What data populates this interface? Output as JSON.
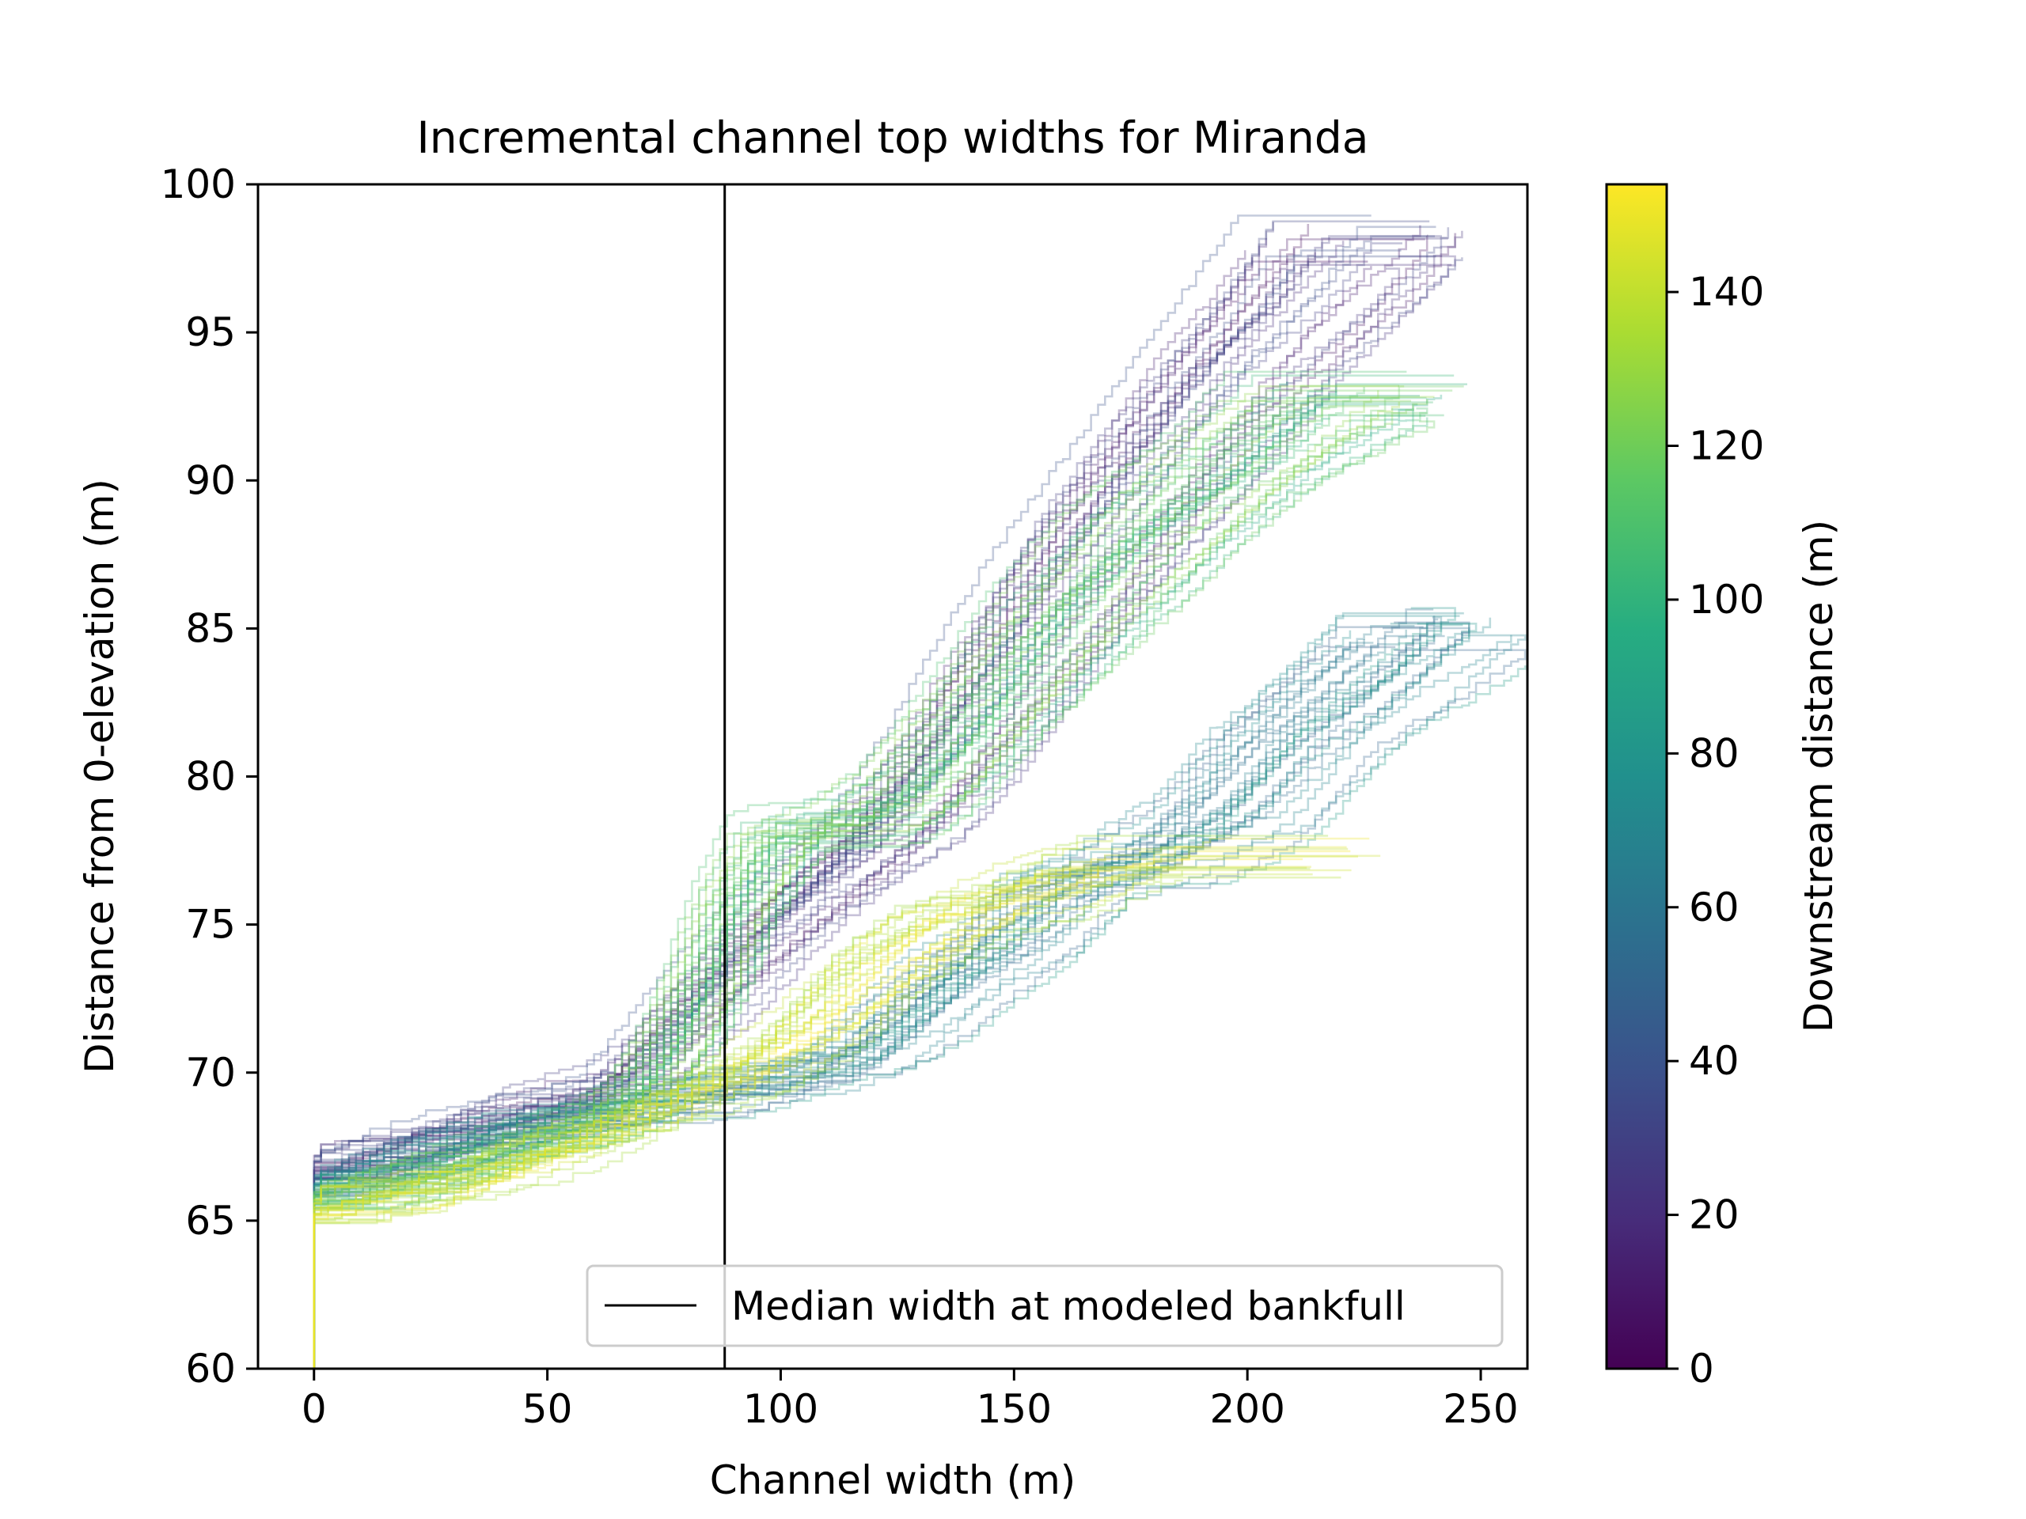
{
  "chart_data": {
    "type": "line",
    "title": "Incremental channel top widths for Miranda",
    "xlabel": "Channel width (m)",
    "ylabel": "Distance from 0-elevation (m)",
    "xlim": [
      -12,
      260
    ],
    "ylim": [
      60,
      100
    ],
    "xticks": [
      0,
      50,
      100,
      150,
      200,
      250
    ],
    "yticks": [
      60,
      65,
      70,
      75,
      80,
      85,
      90,
      95,
      100
    ],
    "grid": false,
    "legend": {
      "position": "lower right",
      "entries": [
        "Median width at modeled bankfull"
      ]
    },
    "reference_lines": [
      {
        "orientation": "vertical",
        "x": 88,
        "color": "#000000",
        "label": "Median width at modeled bankfull"
      }
    ],
    "colorbar": {
      "label": "Downstream distance (m)",
      "colormap": "viridis",
      "range": [
        0,
        154
      ],
      "ticks": [
        0,
        20,
        40,
        60,
        80,
        100,
        120,
        140
      ]
    },
    "line_alpha": 0.3,
    "series_groups": [
      {
        "downstream_range": [
          5,
          40
        ],
        "count": 30,
        "x": [
          0,
          30,
          65,
          72,
          78,
          85,
          92,
          100,
          110,
          125,
          140,
          155,
          170,
          185,
          200,
          215,
          225
        ],
        "y": [
          66.8,
          67.9,
          69.6,
          70.6,
          71.5,
          72.6,
          73.7,
          75.0,
          76.4,
          78.4,
          81.2,
          84.6,
          88.0,
          91.0,
          93.8,
          96.2,
          98.2
        ],
        "end_extension_to": 245
      },
      {
        "downstream_range": [
          45,
          85
        ],
        "count": 30,
        "x": [
          0,
          35,
          70,
          95,
          115,
          125,
          135,
          150,
          160,
          175,
          195,
          210,
          225,
          240
        ],
        "y": [
          66.2,
          67.8,
          69.0,
          69.6,
          70.5,
          71.6,
          73.0,
          74.6,
          76.4,
          77.0,
          78.6,
          81.3,
          83.2,
          85.1
        ],
        "end_extension_to": 247
      },
      {
        "downstream_range": [
          90,
          130
        ],
        "count": 35,
        "x": [
          0,
          30,
          60,
          70,
          78,
          85,
          90,
          100,
          110,
          118,
          130,
          150,
          165,
          180,
          195,
          210,
          220
        ],
        "y": [
          65.8,
          66.9,
          68.4,
          69.4,
          71.3,
          73.5,
          75.6,
          78.0,
          78.4,
          78.6,
          79.8,
          83.2,
          86.0,
          88.4,
          90.2,
          91.8,
          93.0
        ],
        "end_extension_to": 248
      },
      {
        "downstream_range": [
          130,
          154
        ],
        "count": 25,
        "x": [
          0,
          30,
          60,
          80,
          95,
          110,
          125,
          140,
          160,
          175
        ],
        "y": [
          65.3,
          66.3,
          67.8,
          69.2,
          70.2,
          71.7,
          73.8,
          75.4,
          76.4,
          77.2
        ],
        "end_extension_to": 230
      }
    ]
  }
}
